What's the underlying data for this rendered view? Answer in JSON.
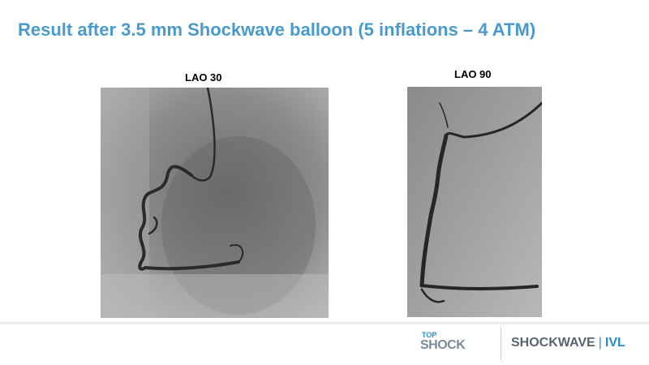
{
  "title": "Result after 3.5 mm Shockwave balloon (5 inflations – 4 ATM)",
  "panels": [
    {
      "label": "LAO  30"
    },
    {
      "label": "LAO  90"
    }
  ],
  "footer": {
    "event_logo": {
      "top": "TOP",
      "main": "SHOCK"
    },
    "brand": {
      "name": "SHOCKWAVE",
      "product": "IVL"
    }
  }
}
